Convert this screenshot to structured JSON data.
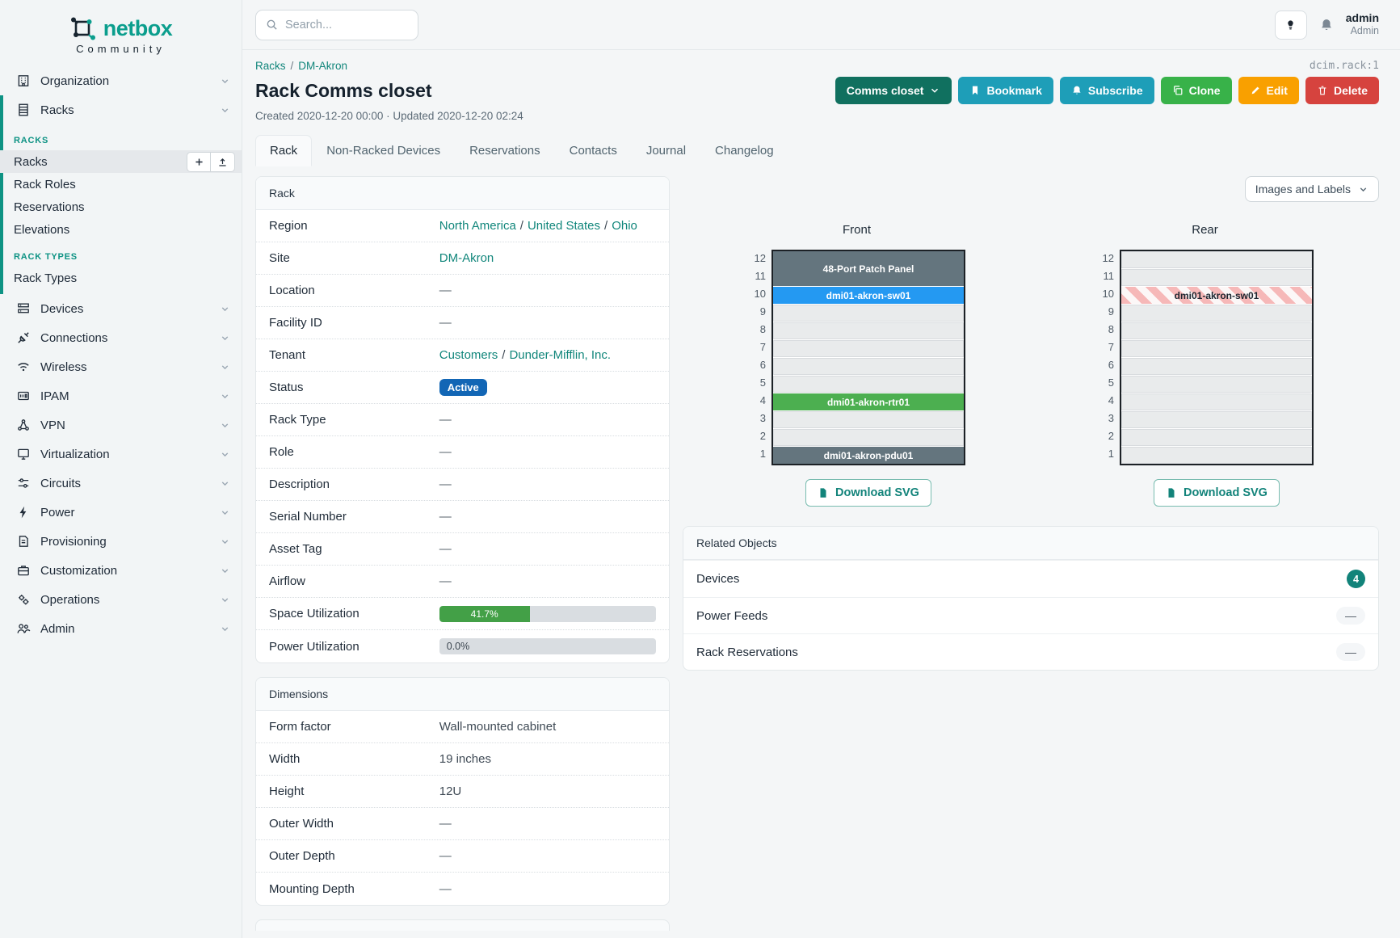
{
  "brand": {
    "name": "netbox",
    "subtitle": "Community"
  },
  "meta": {
    "object_type": "dcim.rack:1"
  },
  "topbar": {
    "search_placeholder": "Search...",
    "user": {
      "name": "admin",
      "role": "Admin"
    }
  },
  "sidebar": {
    "items": [
      {
        "label": "Organization",
        "icon": "building-icon"
      },
      {
        "label": "Racks",
        "icon": "rack-icon",
        "expanded": true,
        "groups": [
          {
            "title": "RACKS",
            "links": [
              {
                "label": "Racks",
                "active": true,
                "actions": [
                  {
                    "icon": "plus-icon"
                  },
                  {
                    "icon": "upload-icon"
                  }
                ]
              },
              {
                "label": "Rack Roles"
              },
              {
                "label": "Reservations"
              },
              {
                "label": "Elevations"
              }
            ]
          },
          {
            "title": "RACK TYPES",
            "links": [
              {
                "label": "Rack Types"
              }
            ]
          }
        ]
      },
      {
        "label": "Devices",
        "icon": "devices-icon"
      },
      {
        "label": "Connections",
        "icon": "connections-icon"
      },
      {
        "label": "Wireless",
        "icon": "wireless-icon"
      },
      {
        "label": "IPAM",
        "icon": "ipam-icon"
      },
      {
        "label": "VPN",
        "icon": "vpn-icon"
      },
      {
        "label": "Virtualization",
        "icon": "virtualization-icon"
      },
      {
        "label": "Circuits",
        "icon": "circuits-icon"
      },
      {
        "label": "Power",
        "icon": "power-icon"
      },
      {
        "label": "Provisioning",
        "icon": "provisioning-icon"
      },
      {
        "label": "Customization",
        "icon": "customization-icon"
      },
      {
        "label": "Operations",
        "icon": "operations-icon"
      },
      {
        "label": "Admin",
        "icon": "admin-icon"
      }
    ]
  },
  "page": {
    "breadcrumb": [
      "Racks",
      "DM-Akron"
    ],
    "title": "Rack Comms closet",
    "meta_line": "Created 2020-12-20 00:00 · Updated 2020-12-20 02:24",
    "actions": [
      {
        "label": "Comms closet",
        "style": "dark-teal",
        "caret": true
      },
      {
        "label": "Bookmark",
        "style": "cyan",
        "icon": "bookmark-icon"
      },
      {
        "label": "Subscribe",
        "style": "cyan",
        "icon": "bell-plus-icon"
      },
      {
        "label": "Clone",
        "style": "green",
        "icon": "copy-icon"
      },
      {
        "label": "Edit",
        "style": "orange",
        "icon": "pencil-icon"
      },
      {
        "label": "Delete",
        "style": "red",
        "icon": "trash-icon"
      }
    ],
    "tabs": [
      {
        "label": "Rack",
        "active": true
      },
      {
        "label": "Non-Racked Devices"
      },
      {
        "label": "Reservations"
      },
      {
        "label": "Contacts"
      },
      {
        "label": "Journal"
      },
      {
        "label": "Changelog"
      }
    ]
  },
  "rack_panel": {
    "title": "Rack",
    "rows": [
      {
        "label": "Region",
        "kind": "links",
        "links": [
          "North America",
          "United States",
          "Ohio"
        ]
      },
      {
        "label": "Site",
        "kind": "links",
        "links": [
          "DM-Akron"
        ]
      },
      {
        "label": "Location",
        "kind": "dash"
      },
      {
        "label": "Facility ID",
        "kind": "dash"
      },
      {
        "label": "Tenant",
        "kind": "links",
        "links": [
          "Customers",
          "Dunder-Mifflin, Inc."
        ]
      },
      {
        "label": "Status",
        "kind": "badge",
        "value": "Active",
        "color": "#1266b5"
      },
      {
        "label": "Rack Type",
        "kind": "dash"
      },
      {
        "label": "Role",
        "kind": "dash"
      },
      {
        "label": "Description",
        "kind": "dash"
      },
      {
        "label": "Serial Number",
        "kind": "dash"
      },
      {
        "label": "Asset Tag",
        "kind": "dash"
      },
      {
        "label": "Airflow",
        "kind": "dash"
      },
      {
        "label": "Space Utilization",
        "kind": "progress",
        "percent": 41.7,
        "display": "41.7%",
        "fill": "#43a047"
      },
      {
        "label": "Power Utilization",
        "kind": "progress",
        "percent": 0.0,
        "display": "0.0%",
        "fill": null
      }
    ]
  },
  "dimensions_panel": {
    "title": "Dimensions",
    "rows": [
      {
        "label": "Form factor",
        "kind": "text",
        "value": "Wall-mounted cabinet"
      },
      {
        "label": "Width",
        "kind": "text",
        "value": "19 inches"
      },
      {
        "label": "Height",
        "kind": "text",
        "value": "12U"
      },
      {
        "label": "Outer Width",
        "kind": "dash"
      },
      {
        "label": "Outer Depth",
        "kind": "dash"
      },
      {
        "label": "Mounting Depth",
        "kind": "dash"
      }
    ]
  },
  "elevations": {
    "toolbar_button": "Images and Labels",
    "download_label": "Download SVG",
    "unit_labels": [
      12,
      11,
      10,
      9,
      8,
      7,
      6,
      5,
      4,
      3,
      2,
      1
    ],
    "views": [
      {
        "title": "Front",
        "slots": [
          {
            "u": 12,
            "span": 2,
            "label": "48-Port Patch Panel",
            "appearance": "slate"
          },
          {
            "u": 10,
            "span": 1,
            "label": "dmi01-akron-sw01",
            "appearance": "blue"
          },
          {
            "u": 9,
            "span": 1,
            "appearance": "empty"
          },
          {
            "u": 8,
            "span": 1,
            "appearance": "empty"
          },
          {
            "u": 7,
            "span": 1,
            "appearance": "empty"
          },
          {
            "u": 6,
            "span": 1,
            "appearance": "empty"
          },
          {
            "u": 5,
            "span": 1,
            "appearance": "empty"
          },
          {
            "u": 4,
            "span": 1,
            "label": "dmi01-akron-rtr01",
            "appearance": "green"
          },
          {
            "u": 3,
            "span": 1,
            "appearance": "empty"
          },
          {
            "u": 2,
            "span": 1,
            "appearance": "empty"
          },
          {
            "u": 1,
            "span": 1,
            "label": "dmi01-akron-pdu01",
            "appearance": "slate"
          }
        ]
      },
      {
        "title": "Rear",
        "slots": [
          {
            "u": 12,
            "span": 1,
            "appearance": "empty"
          },
          {
            "u": 11,
            "span": 1,
            "appearance": "empty"
          },
          {
            "u": 10,
            "span": 1,
            "label": "dmi01-akron-sw01",
            "appearance": "striped"
          },
          {
            "u": 9,
            "span": 1,
            "appearance": "empty"
          },
          {
            "u": 8,
            "span": 1,
            "appearance": "empty"
          },
          {
            "u": 7,
            "span": 1,
            "appearance": "empty"
          },
          {
            "u": 6,
            "span": 1,
            "appearance": "empty"
          },
          {
            "u": 5,
            "span": 1,
            "appearance": "empty"
          },
          {
            "u": 4,
            "span": 1,
            "appearance": "empty"
          },
          {
            "u": 3,
            "span": 1,
            "appearance": "empty"
          },
          {
            "u": 2,
            "span": 1,
            "appearance": "empty"
          },
          {
            "u": 1,
            "span": 1,
            "appearance": "empty"
          }
        ]
      }
    ],
    "colors": {
      "slate": "#64757e",
      "blue": "#2499f2",
      "green": "#4caf50",
      "accent": "#11867b"
    }
  },
  "related_panel": {
    "title": "Related Objects",
    "rows": [
      {
        "label": "Devices",
        "kind": "count",
        "value": "4",
        "color": "#12837a"
      },
      {
        "label": "Power Feeds",
        "kind": "dash"
      },
      {
        "label": "Rack Reservations",
        "kind": "dash"
      }
    ]
  }
}
